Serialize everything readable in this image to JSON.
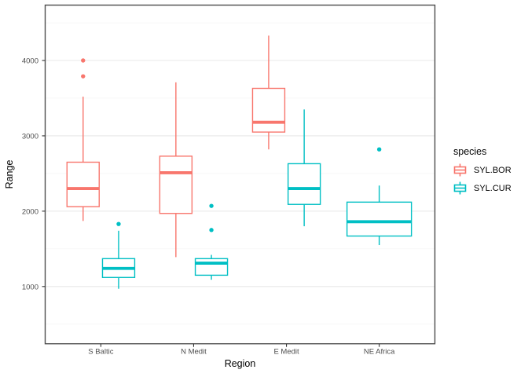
{
  "chart_data": {
    "type": "boxplot",
    "title": "",
    "xlabel": "Region",
    "ylabel": "Range",
    "categories": [
      "S Baltic",
      "N Medit",
      "E Medit",
      "NE Africa"
    ],
    "y_ticks": [
      1000,
      2000,
      3000,
      4000
    ],
    "y_minor_ticks": [
      500,
      1500,
      2500,
      3500,
      4500
    ],
    "ylim": [
      240,
      4735
    ],
    "grid": true,
    "legend": {
      "title": "species",
      "position": "right"
    },
    "series": [
      {
        "name": "SYL.BOR",
        "color": "#F8766D",
        "boxes": [
          {
            "category": "S Baltic",
            "low": 1870,
            "q1": 2060,
            "median": 2300,
            "q3": 2650,
            "high": 3520,
            "outliers": [
              3790,
              4000
            ]
          },
          {
            "category": "N Medit",
            "low": 1390,
            "q1": 1970,
            "median": 2510,
            "q3": 2730,
            "high": 3710,
            "outliers": []
          },
          {
            "category": "E Medit",
            "low": 2820,
            "q1": 3050,
            "median": 3180,
            "q3": 3630,
            "high": 4330,
            "outliers": []
          },
          {
            "category": "NE Africa",
            "low": null,
            "q1": null,
            "median": null,
            "q3": null,
            "high": null,
            "outliers": []
          }
        ]
      },
      {
        "name": "SYL.CUR",
        "color": "#00BFC4",
        "boxes": [
          {
            "category": "S Baltic",
            "low": 970,
            "q1": 1120,
            "median": 1240,
            "q3": 1370,
            "high": 1740,
            "outliers": [
              1830
            ]
          },
          {
            "category": "N Medit",
            "low": 1090,
            "q1": 1150,
            "median": 1310,
            "q3": 1370,
            "high": 1420,
            "outliers": [
              1750,
              2070
            ]
          },
          {
            "category": "E Medit",
            "low": 1800,
            "q1": 2090,
            "median": 2300,
            "q3": 2630,
            "high": 3350,
            "outliers": []
          },
          {
            "category": "NE Africa",
            "low": 1550,
            "q1": 1670,
            "median": 1860,
            "q3": 2120,
            "high": 2340,
            "outliers": [
              2820
            ]
          }
        ]
      }
    ],
    "style": {
      "panel_border": "#4d4d4d",
      "grid_major": "#e8e8e8",
      "grid_minor": "#f3f3f3",
      "tick_color": "#333333",
      "box_fill": "#ffffff"
    }
  }
}
